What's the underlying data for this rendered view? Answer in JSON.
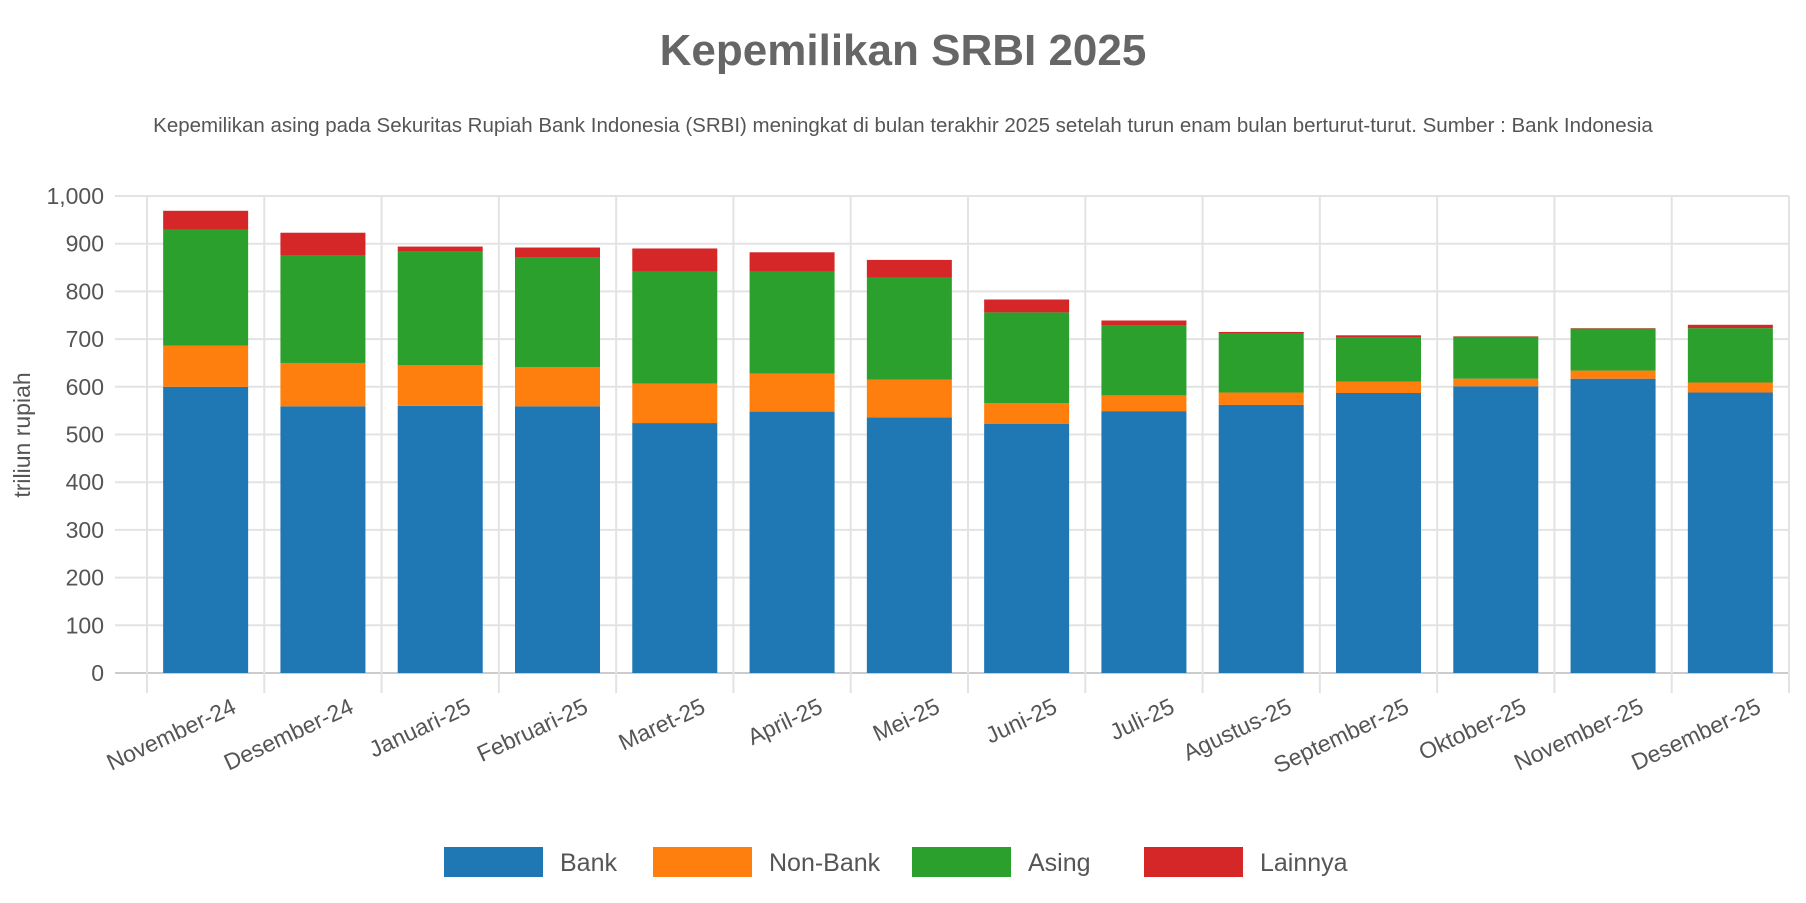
{
  "chart_data": {
    "type": "bar",
    "stacked": true,
    "title": "Kepemilikan SRBI 2025",
    "subtitle": "Kepemilikan asing pada Sekuritas Rupiah Bank Indonesia (SRBI) meningkat di bulan terakhir 2025 setelah turun enam bulan berturut-turut. Sumber : Bank Indonesia",
    "xlabel": "",
    "ylabel": "triliun rupiah",
    "ylim": [
      0,
      1000
    ],
    "yticks": [
      "0",
      "100",
      "200",
      "300",
      "400",
      "500",
      "600",
      "700",
      "800",
      "900",
      "1,000"
    ],
    "ytick_values": [
      0,
      100,
      200,
      300,
      400,
      500,
      600,
      700,
      800,
      900,
      1000
    ],
    "grid": true,
    "legend_position": "bottom",
    "categories": [
      "November-24",
      "Desember-24",
      "Januari-25",
      "Februari-25",
      "Maret-25",
      "April-25",
      "Mei-25",
      "Juni-25",
      "Juli-25",
      "Agustus-25",
      "September-25",
      "Oktober-25",
      "November-25",
      "Desember-25"
    ],
    "series": [
      {
        "name": "Bank",
        "color": "#1f77b4",
        "values": [
          600,
          559,
          560,
          559,
          524,
          548,
          536,
          522,
          549,
          562,
          587,
          601,
          617,
          588
        ]
      },
      {
        "name": "Non-Bank",
        "color": "#ff7f0e",
        "values": [
          86,
          91,
          85,
          82,
          83,
          80,
          79,
          44,
          33,
          26,
          24,
          16,
          17,
          21
        ]
      },
      {
        "name": "Asing",
        "color": "#2ca02c",
        "values": [
          243,
          225,
          238,
          231,
          234,
          213,
          214,
          190,
          146,
          123,
          92,
          88,
          88,
          114
        ]
      },
      {
        "name": "Lainnya",
        "color": "#d62728",
        "values": [
          40,
          48,
          11,
          20,
          49,
          41,
          37,
          27,
          11,
          4,
          5,
          1,
          1,
          7
        ]
      }
    ]
  }
}
